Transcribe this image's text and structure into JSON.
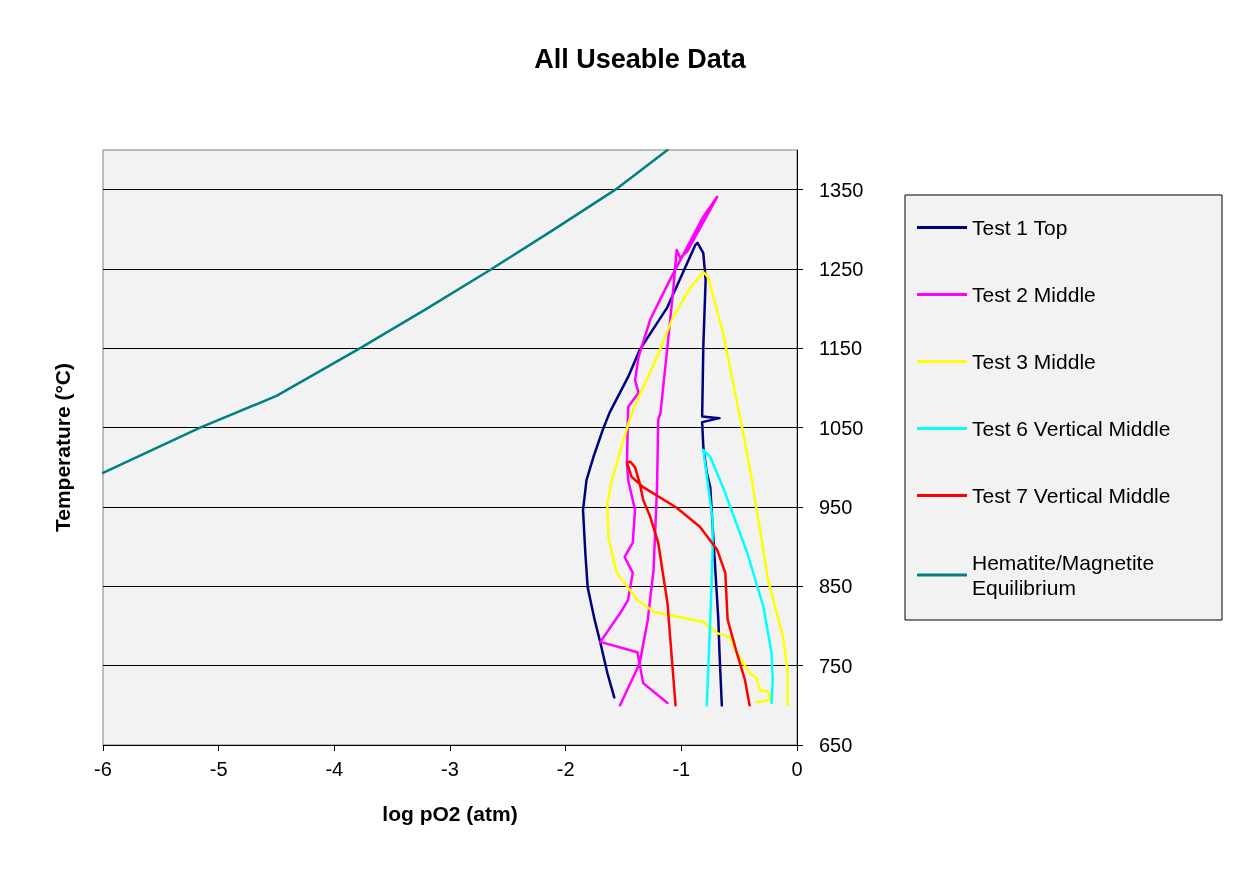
{
  "chart_data": {
    "type": "line",
    "title": "All Useable Data",
    "xlabel": "log pO2 (atm)",
    "ylabel": "Temperature (°C)",
    "xlim": [
      -6,
      0
    ],
    "xticks": [
      -6,
      -5,
      -4,
      -3,
      -2,
      -1,
      0
    ],
    "ylim": [
      650,
      1400
    ],
    "yticks": [
      650,
      750,
      850,
      950,
      1050,
      1150,
      1250,
      1350
    ],
    "grid": "y",
    "legend": "right",
    "marker": "none",
    "line_style": "solid",
    "series": [
      {
        "name": "Test 1 Top",
        "color": "#000080",
        "x": [
          -1.58,
          -1.64,
          -1.7,
          -1.75,
          -1.81,
          -1.83,
          -1.85,
          -1.82,
          -1.76,
          -1.68,
          -1.62,
          -1.46,
          -1.36,
          -1.12,
          -0.88,
          -0.86,
          -0.81,
          -0.79,
          -0.81,
          -0.82,
          -0.67,
          -0.82,
          -0.81,
          -0.78,
          -0.75,
          -0.68,
          -0.67,
          -0.65
        ],
        "values": [
          710,
          741,
          779,
          808,
          849,
          892,
          946,
          984,
          1013,
          1047,
          1069,
          1114,
          1148,
          1202,
          1280,
          1283,
          1270,
          1236,
          1152,
          1064,
          1062,
          1057,
          1026,
          993,
          975,
          808,
          766,
          700
        ]
      },
      {
        "name": "Test 2 Middle",
        "color": "#ff00ff",
        "x": [
          -1.12,
          -1.33,
          -1.38,
          -1.7,
          -1.53,
          -1.46,
          -1.42,
          -1.49,
          -1.42,
          -1.4,
          -1.46,
          -1.47,
          -1.46,
          -1.37,
          -1.4,
          -1.37,
          -1.27,
          -1.1,
          -0.81,
          -0.69,
          -0.95,
          -1.01,
          -1.04,
          -1.07,
          -1.12,
          -1.18,
          -1.2,
          -1.21,
          -1.24,
          -1.29,
          -1.36,
          -1.53
        ],
        "values": [
          703,
          728,
          767,
          780,
          816,
          833,
          867,
          887,
          905,
          946,
          984,
          1006,
          1076,
          1094,
          1110,
          1139,
          1186,
          1236,
          1316,
          1341,
          1272,
          1264,
          1274,
          1224,
          1152,
          1069,
          1060,
          975,
          871,
          808,
          753,
          700
        ]
      },
      {
        "name": "Test 3 Middle",
        "color": "#ffff00",
        "x": [
          -0.35,
          -0.23,
          -0.25,
          -0.32,
          -0.35,
          -0.41,
          -0.52,
          -0.58,
          -0.69,
          -0.81,
          -1.24,
          -1.38,
          -1.56,
          -1.63,
          -1.64,
          -1.6,
          -1.5,
          -1.42,
          -1.33,
          -1.21,
          -1.07,
          -0.92,
          -0.81,
          -0.77,
          -0.64,
          -0.47,
          -0.39,
          -0.32,
          -0.25,
          -0.12,
          -0.08,
          -0.08
        ],
        "values": [
          704,
          707,
          717,
          719,
          734,
          741,
          766,
          786,
          791,
          805,
          818,
          833,
          867,
          912,
          955,
          984,
          1035,
          1072,
          1101,
          1139,
          1190,
          1227,
          1246,
          1240,
          1170,
          1047,
          984,
          921,
          858,
          786,
          741,
          700
        ]
      },
      {
        "name": "Test 6 Vertical Middle",
        "color": "#00ffff",
        "x": [
          -0.78,
          -0.75,
          -0.73,
          -0.73,
          -0.81,
          -0.75,
          -0.64,
          -0.43,
          -0.29,
          -0.22,
          -0.21,
          -0.22
        ],
        "values": [
          700,
          808,
          892,
          934,
          1022,
          1013,
          975,
          892,
          824,
          766,
          732,
          703
        ]
      },
      {
        "name": "Test 7 Vertical Middle",
        "color": "#ff0000",
        "x": [
          -1.05,
          -1.12,
          -1.2,
          -1.27,
          -1.33,
          -1.36,
          -1.4,
          -1.44,
          -1.47,
          -1.43,
          -1.33,
          -1.04,
          -0.84,
          -0.69,
          -0.62,
          -0.6,
          -0.52,
          -0.45,
          -0.41
        ],
        "values": [
          700,
          829,
          905,
          938,
          959,
          980,
          1000,
          1007,
          1006,
          988,
          975,
          949,
          925,
          896,
          867,
          808,
          766,
          732,
          700
        ]
      },
      {
        "name": "Hematite/Magnetite Equilibrium",
        "color": "#008080",
        "x": [
          -6,
          -5.16,
          -4.5,
          -3.78,
          -3.2,
          -2.64,
          -2.1,
          -1.57,
          -1.12
        ],
        "values": [
          993,
          1050,
          1090,
          1150,
          1200,
          1250,
          1300,
          1350,
          1400
        ]
      }
    ]
  }
}
